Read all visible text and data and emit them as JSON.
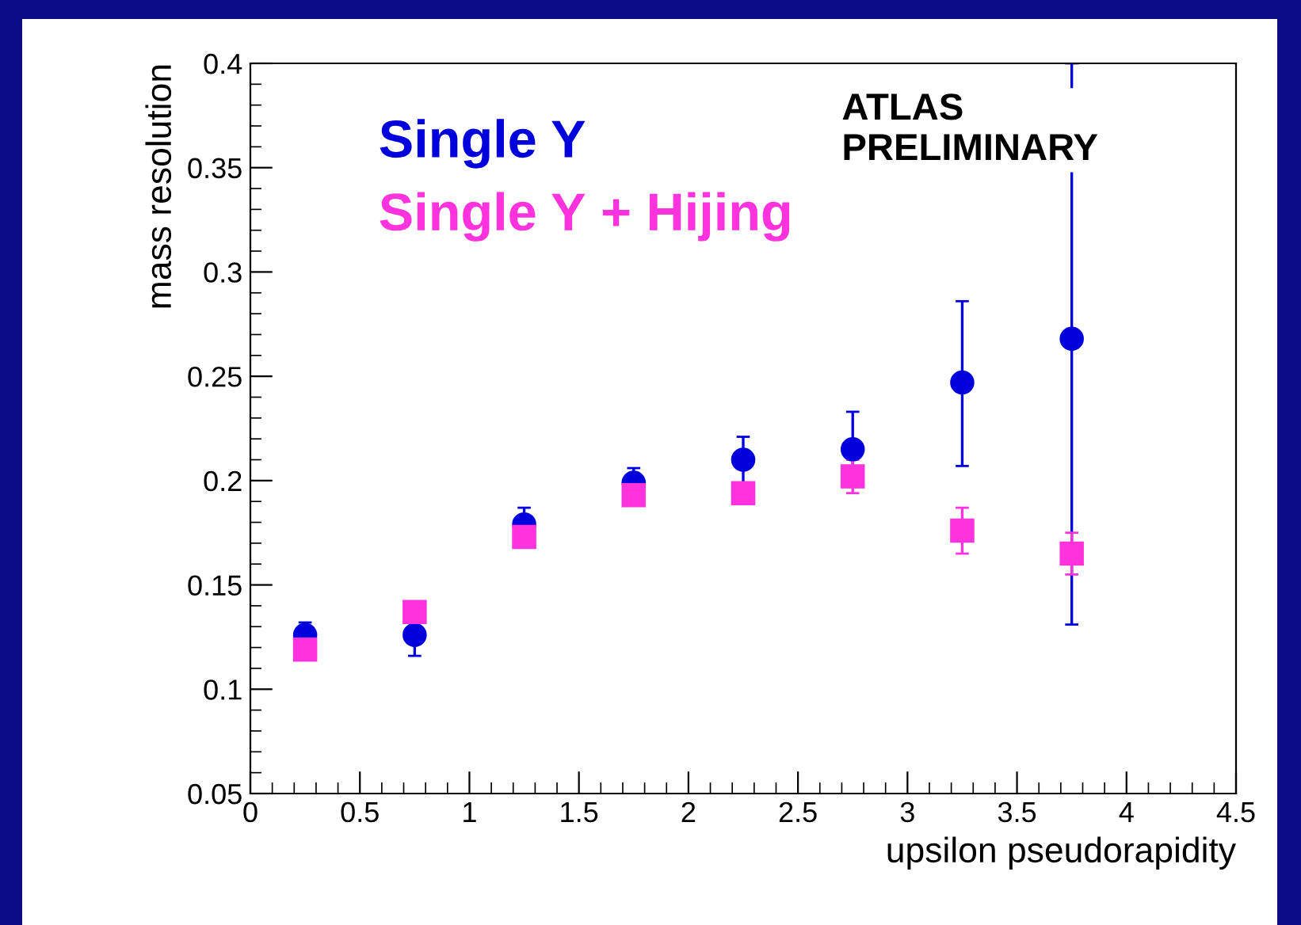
{
  "chart_data": {
    "type": "scatter",
    "xlabel": "upsilon pseudorapidity",
    "ylabel": "mass resolution",
    "x": [
      0.25,
      0.75,
      1.25,
      1.75,
      2.25,
      2.75,
      3.25,
      3.75
    ],
    "series": [
      {
        "name": "Single Υ",
        "color": "#0000dd",
        "marker": "circle",
        "values": [
          0.126,
          0.126,
          0.179,
          0.199,
          0.21,
          0.215,
          0.247,
          0.268
        ],
        "errors": [
          0.006,
          0.01,
          0.008,
          0.007,
          0.011,
          0.018,
          [
            0.207,
            0.286
          ],
          [
            0.131,
            0.4
          ]
        ]
      },
      {
        "name": "Single Υ + Hijing",
        "color": "#ff33dd",
        "marker": "square",
        "values": [
          0.119,
          0.137,
          0.173,
          0.193,
          0.194,
          0.202,
          0.176,
          0.165
        ],
        "errors": [
          0.003,
          0.003,
          0.003,
          0.004,
          null,
          0.008,
          0.011,
          0.01
        ]
      }
    ],
    "xlim": [
      0,
      4.5
    ],
    "ylim": [
      0.05,
      0.4
    ],
    "xticks": [
      0,
      0.5,
      1,
      1.5,
      2,
      2.5,
      3,
      3.5,
      4,
      4.5
    ],
    "yticks": [
      0.05,
      0.1,
      0.15,
      0.2,
      0.25,
      0.3,
      0.35,
      0.4
    ],
    "legend": "top left",
    "grid": false,
    "annotations": [
      "ATLAS\nPRELIMINARY"
    ]
  }
}
